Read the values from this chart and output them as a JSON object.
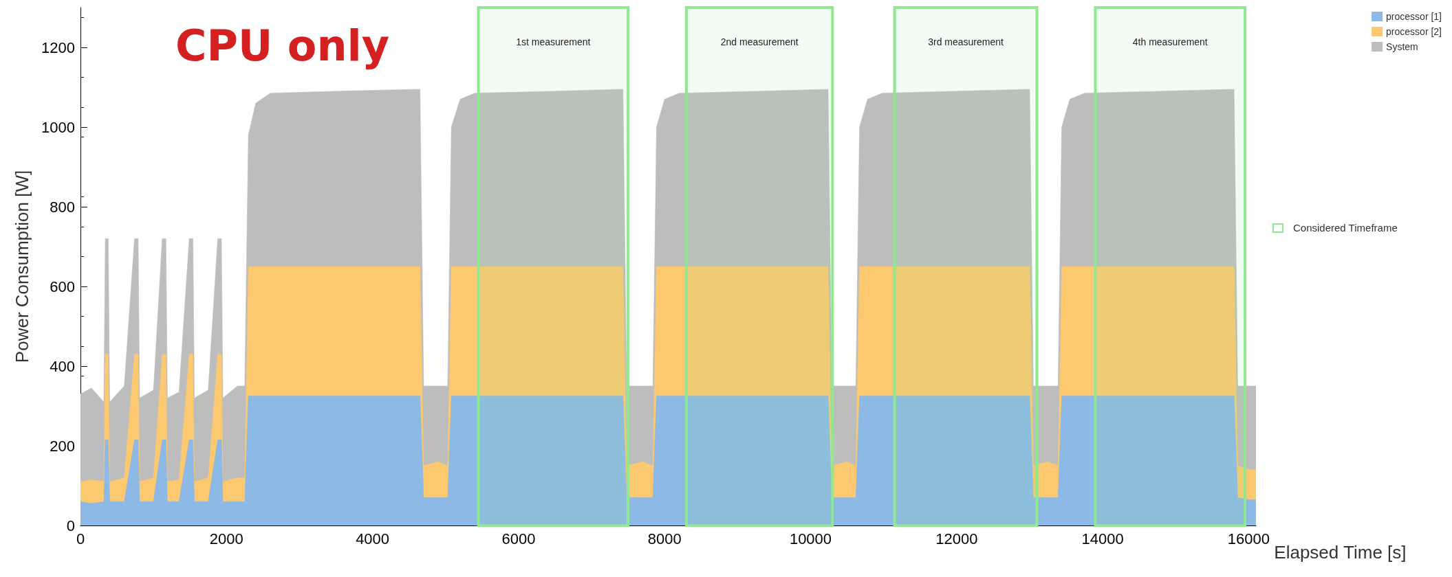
{
  "chart_data": {
    "type": "area",
    "stacked": true,
    "xlabel": "Elapsed Time [s]",
    "ylabel": "Power Consumption [W]",
    "x": [
      0,
      150,
      320,
      340,
      380,
      400,
      600,
      740,
      790,
      810,
      1000,
      1120,
      1170,
      1190,
      1350,
      1490,
      1540,
      1560,
      1750,
      1880,
      1930,
      1950,
      2150,
      2250,
      2300,
      2400,
      2600,
      3500,
      4650,
      4700,
      4900,
      5030,
      5080,
      5200,
      5400,
      6500,
      7430,
      7480,
      7700,
      7840,
      7890,
      8000,
      8200,
      9300,
      10240,
      10290,
      10500,
      10620,
      10670,
      10780,
      10980,
      12000,
      13000,
      13050,
      13250,
      13390,
      13440,
      13550,
      13750,
      14800,
      15800,
      15850,
      16000,
      16100
    ],
    "series": [
      {
        "name": "processor [1]",
        "color": "#8cb9e6",
        "values": [
          60,
          55,
          60,
          215,
          215,
          60,
          60,
          215,
          215,
          60,
          60,
          215,
          215,
          60,
          60,
          215,
          215,
          60,
          60,
          215,
          215,
          60,
          60,
          60,
          325,
          325,
          325,
          325,
          325,
          70,
          70,
          70,
          325,
          325,
          325,
          325,
          325,
          70,
          70,
          70,
          325,
          325,
          325,
          325,
          325,
          70,
          70,
          70,
          325,
          325,
          325,
          325,
          325,
          70,
          70,
          70,
          325,
          325,
          325,
          325,
          325,
          70,
          65,
          65
        ]
      },
      {
        "name": "processor [2]",
        "color": "#fcc870",
        "values": [
          50,
          60,
          50,
          215,
          215,
          50,
          60,
          215,
          215,
          50,
          60,
          215,
          215,
          50,
          55,
          215,
          215,
          50,
          60,
          215,
          215,
          50,
          60,
          60,
          325,
          325,
          325,
          325,
          325,
          80,
          90,
          80,
          325,
          325,
          325,
          325,
          325,
          80,
          90,
          80,
          325,
          325,
          325,
          325,
          325,
          80,
          90,
          80,
          325,
          325,
          325,
          325,
          325,
          80,
          90,
          80,
          325,
          325,
          325,
          325,
          325,
          80,
          75,
          75
        ]
      },
      {
        "name": "System",
        "color": "#bdbdbd",
        "values": [
          220,
          230,
          200,
          290,
          290,
          200,
          230,
          290,
          290,
          210,
          220,
          290,
          290,
          210,
          220,
          290,
          290,
          210,
          220,
          290,
          290,
          210,
          230,
          230,
          330,
          410,
          435,
          440,
          445,
          200,
          190,
          200,
          350,
          420,
          435,
          440,
          445,
          200,
          190,
          200,
          350,
          420,
          435,
          440,
          445,
          200,
          190,
          200,
          350,
          420,
          435,
          440,
          445,
          200,
          190,
          200,
          350,
          420,
          435,
          440,
          445,
          200,
          210,
          210
        ]
      }
    ],
    "xlim": [
      0,
      16100
    ],
    "xticks": [
      0,
      2000,
      4000,
      6000,
      8000,
      10000,
      12000,
      14000,
      16000
    ],
    "ylim": [
      0,
      1300
    ],
    "yticks": [
      0,
      200,
      400,
      600,
      800,
      1000,
      1200
    ],
    "bands": [
      {
        "axis": "x",
        "from": 5450,
        "to": 7500,
        "label": "1st measurement",
        "color": "#90e890"
      },
      {
        "axis": "x",
        "from": 8300,
        "to": 10300,
        "label": "2nd measurement",
        "color": "#90e890"
      },
      {
        "axis": "x",
        "from": 11150,
        "to": 13100,
        "label": "3rd measurement",
        "color": "#90e890"
      },
      {
        "axis": "x",
        "from": 13900,
        "to": 15950,
        "label": "4th measurement",
        "color": "#90e890"
      }
    ],
    "annotations": [
      "CPU only",
      "Considered Timeframe"
    ],
    "legend": "top right",
    "grid": false
  }
}
